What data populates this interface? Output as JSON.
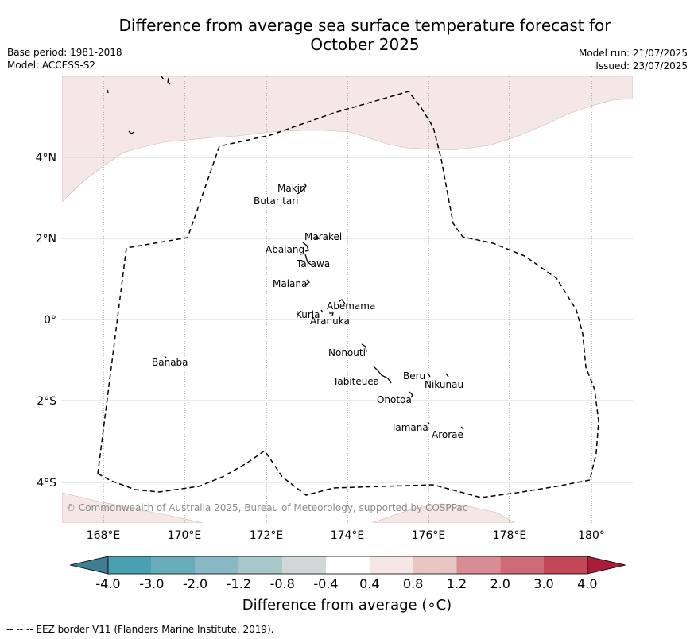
{
  "title_line1": "Difference from average sea surface temperature forecast for",
  "title_line2": "October 2025",
  "base_period": "Base period: 1981-2018",
  "model": "Model: ACCESS-S2",
  "model_run": "Model run: 21/07/2025",
  "issued": "Issued: 23/07/2025",
  "copyright": "© Commonwealth of Australia 2025, Bureau of Meteorology, supported by COSPPac",
  "lat_labels": [
    "4°N",
    "2°N",
    "0°",
    "2°S",
    "4°S"
  ],
  "lon_labels": [
    "168°E",
    "170°E",
    "172°E",
    "174°E",
    "176°E",
    "178°E",
    "180°"
  ],
  "islands": [
    {
      "name": "Makin"
    },
    {
      "name": "Butaritari"
    },
    {
      "name": "Marakei"
    },
    {
      "name": "Abaiang"
    },
    {
      "name": "Tarawa"
    },
    {
      "name": "Maiana"
    },
    {
      "name": "Abemama"
    },
    {
      "name": "Kuria"
    },
    {
      "name": "Aranuka"
    },
    {
      "name": "Banaba"
    },
    {
      "name": "Nonouti"
    },
    {
      "name": "Beru"
    },
    {
      "name": "Tabiteuea"
    },
    {
      "name": "Nikunau"
    },
    {
      "name": "Onotoa"
    },
    {
      "name": "Tamana"
    },
    {
      "name": "Arorae"
    }
  ],
  "colorbar": {
    "labels": [
      "-4.0",
      "-3.0",
      "-2.0",
      "-1.2",
      "-0.8",
      "-0.4",
      "0.4",
      "0.8",
      "1.2",
      "2.0",
      "3.0",
      "4.0"
    ],
    "colors": [
      "#3d7f8e",
      "#4aa0b0",
      "#6aadba",
      "#88b8c3",
      "#a9c8cc",
      "#d0d7d6",
      "#ffffff",
      "#f4e7e5",
      "#e8c6c3",
      "#d88d95",
      "#cd6b78",
      "#c24757",
      "#a81d37"
    ],
    "title": "Difference from average (∘C)"
  },
  "footnote": "-- -- -- EEZ border V11 (Flanders Marine Institute, 2019)."
}
